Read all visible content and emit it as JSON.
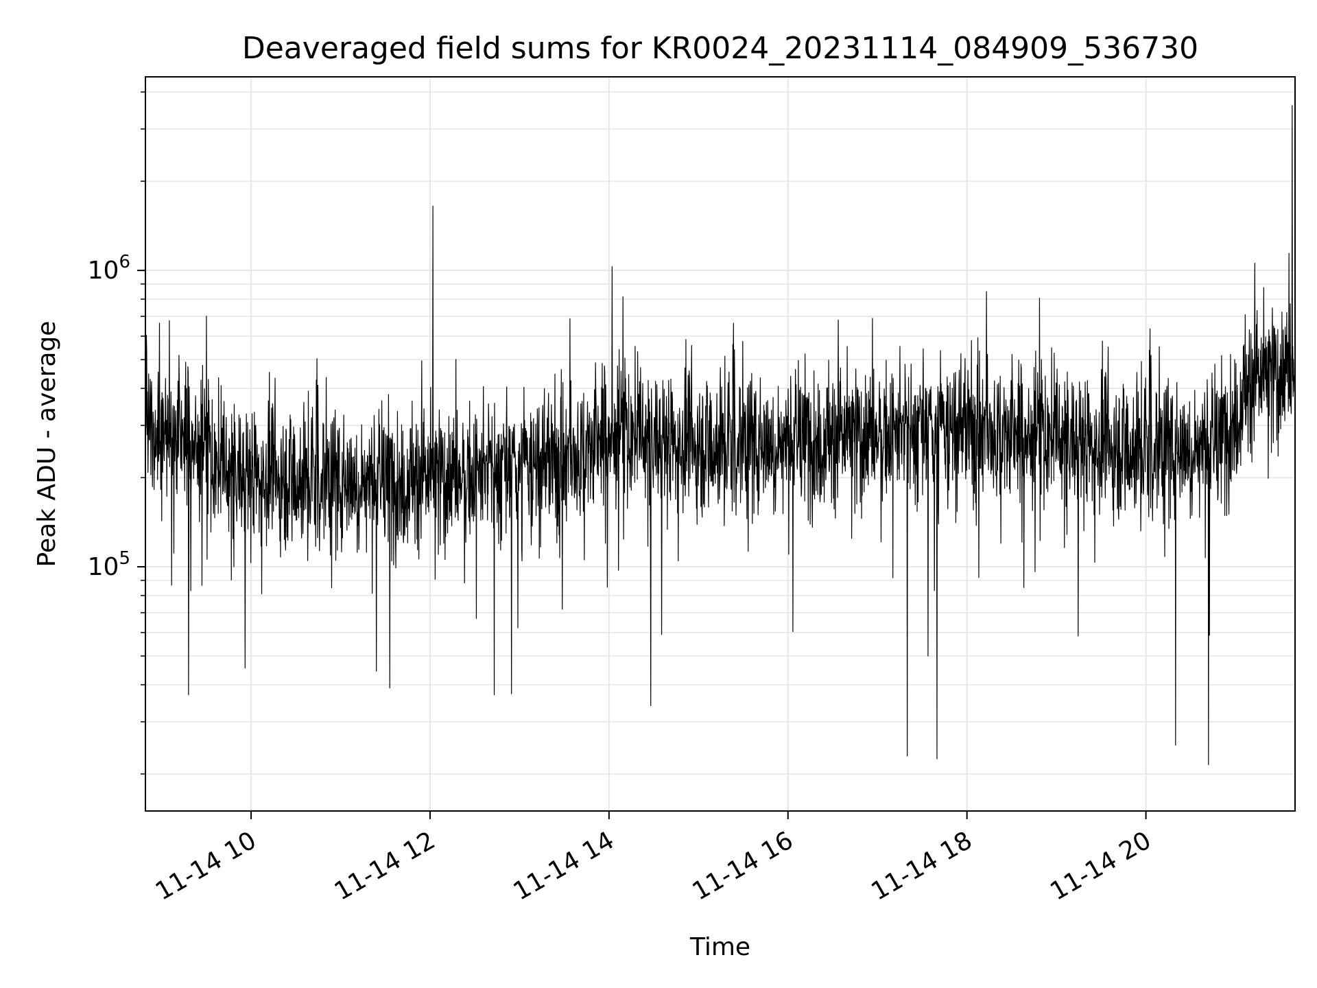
{
  "chart_data": {
    "type": "line",
    "title": "Deaveraged field sums for KR0024_20231114_084909_536730",
    "xlabel": "Time",
    "ylabel": "Peak ADU - average",
    "y_scale": "log",
    "grid": true,
    "line_color": "#000000",
    "grid_color": "#e6e6e6",
    "xlim": [
      "2023-11-14T08:49:09",
      "2023-11-14T21:40:00"
    ],
    "ylim": [
      15000,
      4500000
    ],
    "x_ticks": [
      {
        "t": "2023-11-14T10:00:00",
        "label": "11-14 10"
      },
      {
        "t": "2023-11-14T12:00:00",
        "label": "11-14 12"
      },
      {
        "t": "2023-11-14T14:00:00",
        "label": "11-14 14"
      },
      {
        "t": "2023-11-14T16:00:00",
        "label": "11-14 16"
      },
      {
        "t": "2023-11-14T18:00:00",
        "label": "11-14 18"
      },
      {
        "t": "2023-11-14T20:00:00",
        "label": "11-14 20"
      }
    ],
    "y_ticks": [
      {
        "value": 100000,
        "base": "10",
        "exp": "5"
      },
      {
        "value": 1000000,
        "base": "10",
        "exp": "6"
      }
    ],
    "trend": [
      {
        "t": "2023-11-14T08:50:00",
        "y": 300000
      },
      {
        "t": "2023-11-14T09:20:00",
        "y": 270000
      },
      {
        "t": "2023-11-14T09:40:00",
        "y": 210000
      },
      {
        "t": "2023-11-14T10:30:00",
        "y": 200000
      },
      {
        "t": "2023-11-14T11:30:00",
        "y": 195000
      },
      {
        "t": "2023-11-14T12:30:00",
        "y": 205000
      },
      {
        "t": "2023-11-14T13:30:00",
        "y": 225000
      },
      {
        "t": "2023-11-14T14:00:00",
        "y": 280000
      },
      {
        "t": "2023-11-14T15:00:00",
        "y": 260000
      },
      {
        "t": "2023-11-14T16:00:00",
        "y": 265000
      },
      {
        "t": "2023-11-14T17:00:00",
        "y": 280000
      },
      {
        "t": "2023-11-14T18:00:00",
        "y": 290000
      },
      {
        "t": "2023-11-14T19:00:00",
        "y": 270000
      },
      {
        "t": "2023-11-14T20:00:00",
        "y": 250000
      },
      {
        "t": "2023-11-14T20:50:00",
        "y": 260000
      },
      {
        "t": "2023-11-14T21:10:00",
        "y": 420000
      },
      {
        "t": "2023-11-14T21:40:00",
        "y": 470000
      }
    ],
    "spikes": [
      {
        "t": "2023-11-14T12:02:00",
        "y": 1650000
      },
      {
        "t": "2023-11-14T14:02:00",
        "y": 1030000
      },
      {
        "t": "2023-11-14T21:38:00",
        "y": 3600000
      },
      {
        "t": "2023-11-14T09:18:00",
        "y": 37000
      },
      {
        "t": "2023-11-14T11:33:00",
        "y": 39000
      },
      {
        "t": "2023-11-14T12:43:00",
        "y": 37000
      },
      {
        "t": "2023-11-14T14:28:00",
        "y": 34000
      },
      {
        "t": "2023-11-14T17:20:00",
        "y": 23000
      },
      {
        "t": "2023-11-14T17:40:00",
        "y": 22500
      },
      {
        "t": "2023-11-14T20:20:00",
        "y": 25000
      },
      {
        "t": "2023-11-14T20:42:00",
        "y": 21500
      }
    ]
  }
}
